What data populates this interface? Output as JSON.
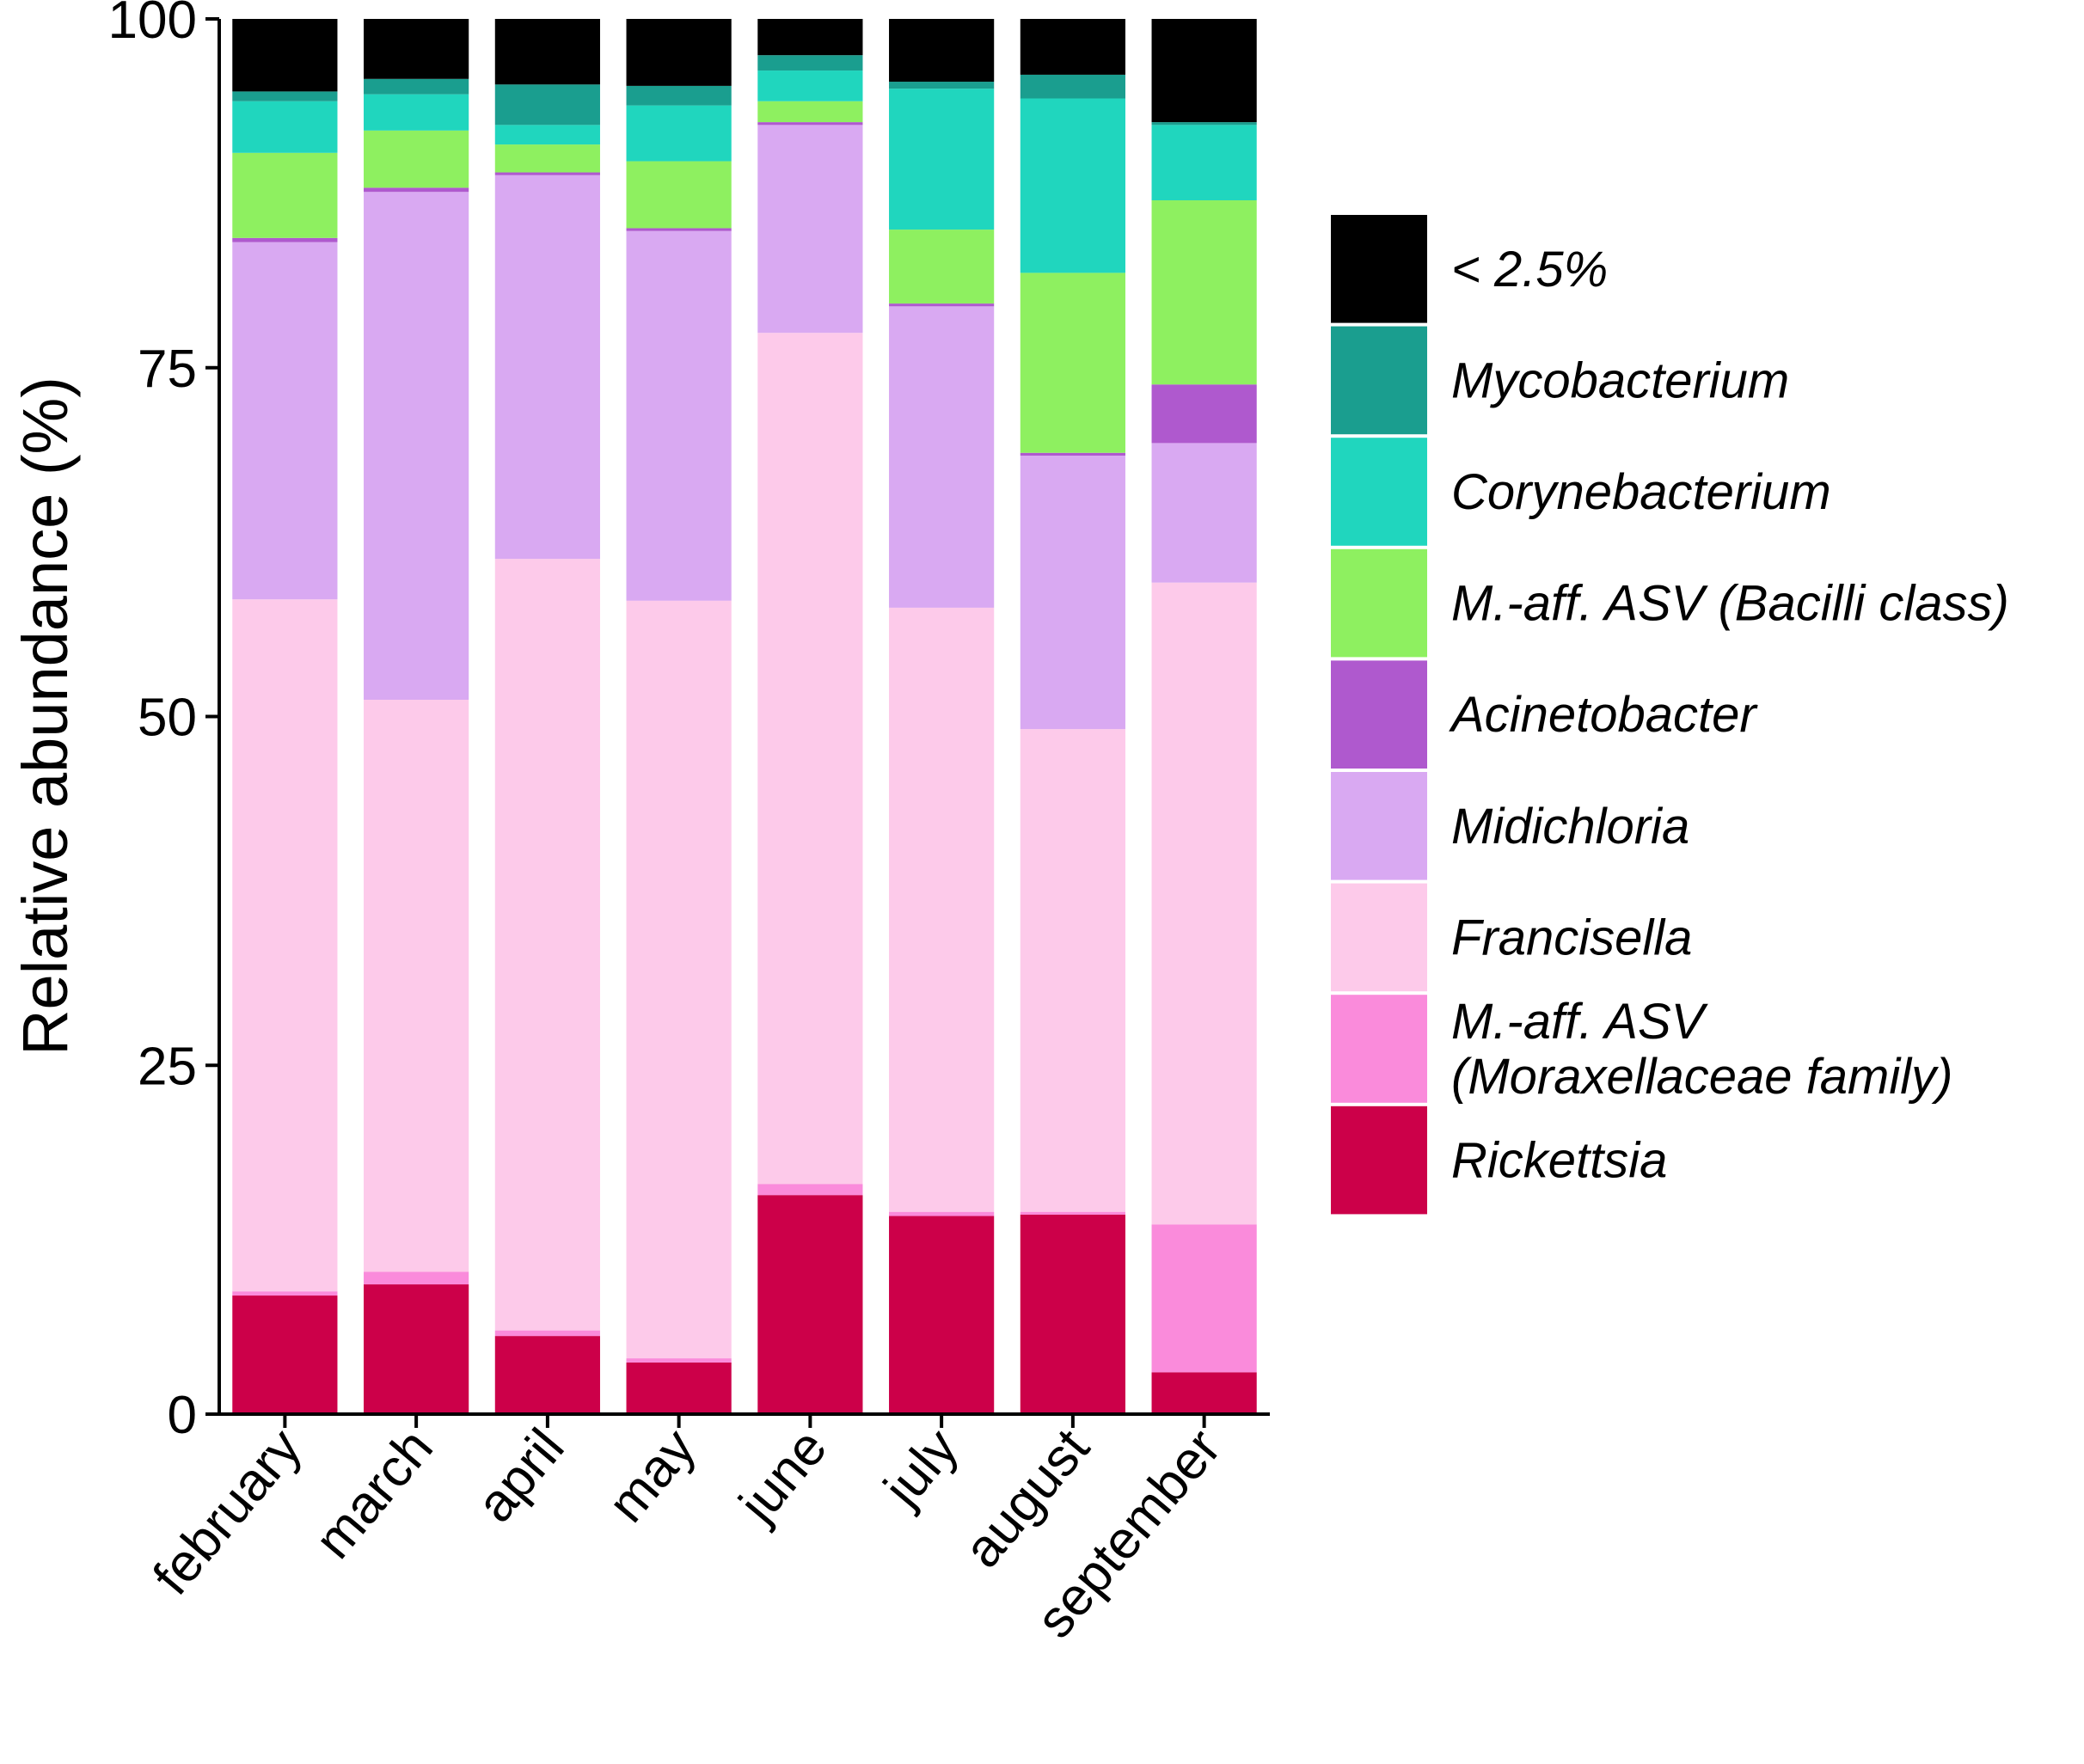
{
  "chart_data": {
    "type": "bar",
    "stacked": true,
    "xlabel": "",
    "ylabel": "Relative abundance (%)",
    "ylim": [
      0,
      100
    ],
    "yticks": [
      0,
      25,
      50,
      75,
      100
    ],
    "grid": false,
    "legend_position": "right",
    "categories": [
      "february",
      "march",
      "april",
      "may",
      "june",
      "july",
      "august",
      "september"
    ],
    "series": [
      {
        "name": "Rickettsia",
        "color": "#CC0049",
        "values": [
          8.5,
          9.3,
          5.6,
          3.7,
          15.7,
          14.2,
          14.3,
          3.0
        ]
      },
      {
        "name": "M.-aff. ASV (Moraxellaceae family)",
        "color": "#FA8BDB",
        "values": [
          0.3,
          0.9,
          0.4,
          0.3,
          0.8,
          0.3,
          0.2,
          10.6
        ]
      },
      {
        "name": "Francisella",
        "color": "#FDCAEA",
        "values": [
          49.6,
          41.0,
          55.3,
          54.3,
          61.0,
          43.3,
          34.6,
          46.0
        ]
      },
      {
        "name": "Midichloria",
        "color": "#D9A9F2",
        "values": [
          25.6,
          36.4,
          27.5,
          26.5,
          14.9,
          21.6,
          19.6,
          10.0
        ]
      },
      {
        "name": "Acinetobacter",
        "color": "#AF59CE",
        "values": [
          0.3,
          0.3,
          0.2,
          0.2,
          0.2,
          0.2,
          0.2,
          4.2
        ]
      },
      {
        "name": "M.-aff. ASV (Bacilli class)",
        "color": "#8EF060",
        "values": [
          6.1,
          4.1,
          2.0,
          4.8,
          1.5,
          5.3,
          12.9,
          13.2
        ]
      },
      {
        "name": "Corynebacterium",
        "color": "#20D6BE",
        "values": [
          3.7,
          2.6,
          1.4,
          4.0,
          2.2,
          10.1,
          12.5,
          5.4
        ]
      },
      {
        "name": "Mycobacterium",
        "color": "#1A9E8F",
        "values": [
          0.7,
          1.1,
          2.9,
          1.4,
          1.1,
          0.5,
          1.7,
          0.2
        ]
      },
      {
        "name": "< 2.5%",
        "color": "#000000",
        "values": [
          5.2,
          4.3,
          4.7,
          4.8,
          2.6,
          4.5,
          4.0,
          7.4
        ]
      }
    ],
    "legend_entries": [
      {
        "label": "< 2.5%",
        "color": "#000000"
      },
      {
        "label": "Mycobacterium",
        "color": "#1A9E8F"
      },
      {
        "label": "Corynebacterium",
        "color": "#20D6BE"
      },
      {
        "label": "M.-aff. ASV (Bacilli class)",
        "color": "#8EF060"
      },
      {
        "label": "Acinetobacter",
        "color": "#AF59CE"
      },
      {
        "label": "Midichloria",
        "color": "#D9A9F2"
      },
      {
        "label": "Francisella",
        "color": "#FDCAEA"
      },
      {
        "label": "M.-aff. ASV\n(Moraxellaceae family)",
        "color": "#FA8BDB"
      },
      {
        "label": "Rickettsia",
        "color": "#CC0049"
      }
    ]
  }
}
